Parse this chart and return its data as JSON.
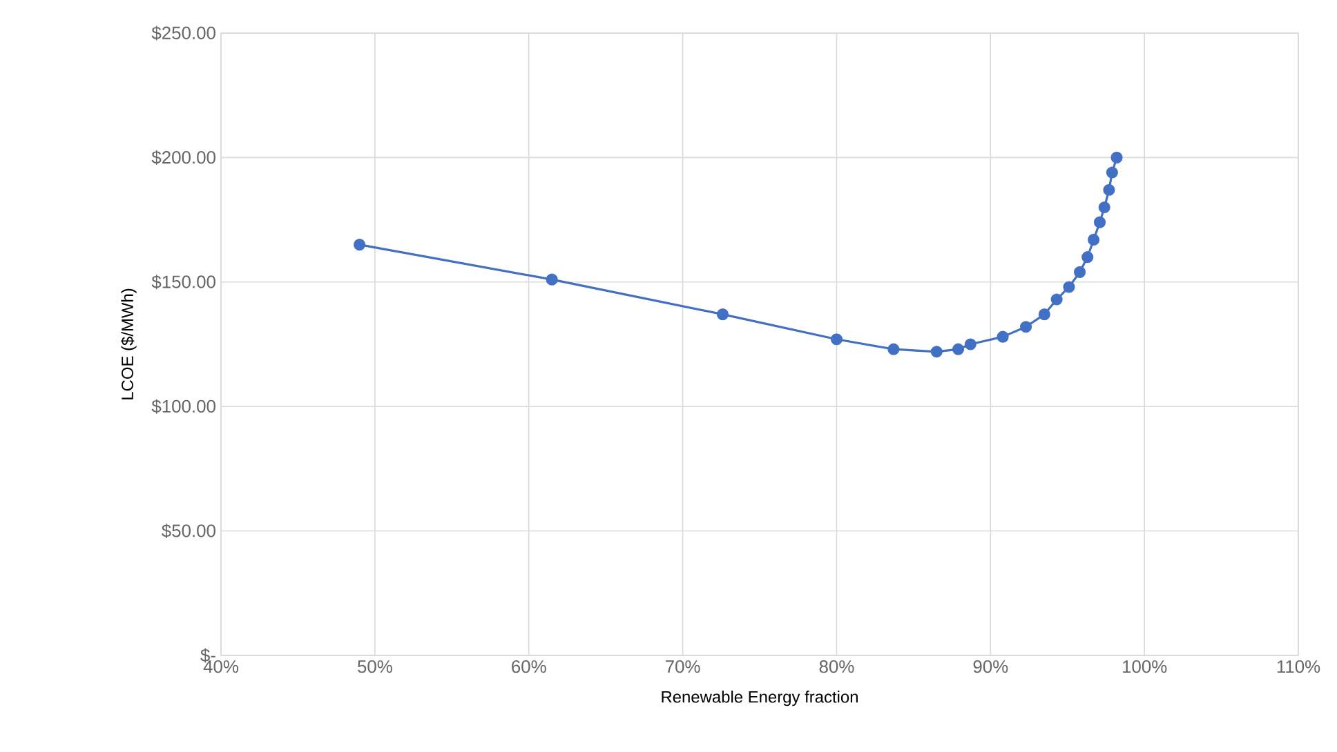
{
  "chart_data": {
    "type": "line",
    "xlabel": "Renewable Energy fraction",
    "ylabel": "LCOE ($/MWh)",
    "x": [
      49.0,
      61.5,
      72.6,
      80.0,
      83.7,
      86.5,
      87.9,
      88.7,
      90.8,
      92.3,
      93.5,
      94.3,
      95.1,
      95.8,
      96.3,
      96.7,
      97.1,
      97.4,
      97.7,
      97.9,
      98.2
    ],
    "values": [
      165,
      151,
      137,
      127,
      123,
      122,
      123,
      125,
      128,
      132,
      137,
      143,
      148,
      154,
      160,
      167,
      174,
      180,
      187,
      194,
      200
    ],
    "color": "#4270c4",
    "xlim": [
      40,
      110
    ],
    "xticks": [
      {
        "value": 40,
        "label": "40%"
      },
      {
        "value": 50,
        "label": "50%"
      },
      {
        "value": 60,
        "label": "60%"
      },
      {
        "value": 70,
        "label": "70%"
      },
      {
        "value": 80,
        "label": "80%"
      },
      {
        "value": 90,
        "label": "90%"
      },
      {
        "value": 100,
        "label": "100%"
      },
      {
        "value": 110,
        "label": "110%"
      }
    ],
    "ylim": [
      0,
      250
    ],
    "yticks": [
      {
        "value": 0,
        "label": "$-"
      },
      {
        "value": 50,
        "label": "$50.00"
      },
      {
        "value": 100,
        "label": "$100.00"
      },
      {
        "value": 150,
        "label": "$150.00"
      },
      {
        "value": 200,
        "label": "$200.00"
      },
      {
        "value": 250,
        "label": "$250.00"
      }
    ],
    "grid": true,
    "marker": "circle",
    "line_style": "solid"
  }
}
